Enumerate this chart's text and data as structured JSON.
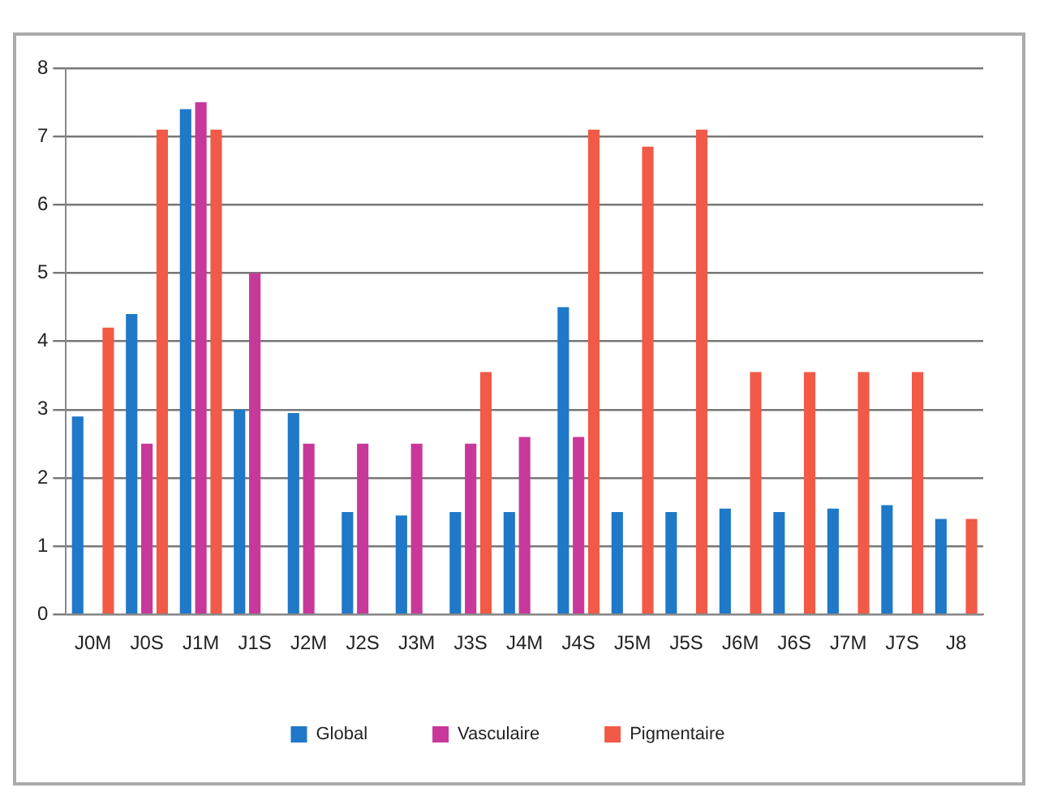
{
  "chart_data": {
    "type": "bar",
    "categories": [
      "J0M",
      "J0S",
      "J1M",
      "J1S",
      "J2M",
      "J2S",
      "J3M",
      "J3S",
      "J4M",
      "J4S",
      "J5M",
      "J5S",
      "J6M",
      "J6S",
      "J7M",
      "J7S",
      "J8"
    ],
    "series": [
      {
        "name": "Global",
        "color": "#1f78c8",
        "values": [
          2.9,
          4.4,
          7.4,
          3.0,
          2.95,
          1.5,
          1.45,
          1.5,
          1.5,
          4.5,
          1.5,
          1.5,
          1.55,
          1.5,
          1.55,
          1.6,
          1.4
        ]
      },
      {
        "name": "Vasculaire",
        "color": "#c8389a",
        "values": [
          null,
          2.5,
          7.5,
          5.0,
          2.5,
          2.5,
          2.5,
          2.5,
          2.6,
          2.6,
          null,
          null,
          null,
          null,
          null,
          null,
          null
        ]
      },
      {
        "name": "Pigmentaire",
        "color": "#f05a46",
        "values": [
          4.2,
          7.1,
          7.1,
          null,
          null,
          null,
          null,
          3.55,
          null,
          7.1,
          6.85,
          7.1,
          3.55,
          3.55,
          3.55,
          3.55,
          1.4
        ]
      }
    ],
    "ylim": [
      0,
      8
    ],
    "yticks": [
      0,
      1,
      2,
      3,
      4,
      5,
      6,
      7,
      8
    ],
    "grid": "y",
    "legend": "bottom"
  }
}
